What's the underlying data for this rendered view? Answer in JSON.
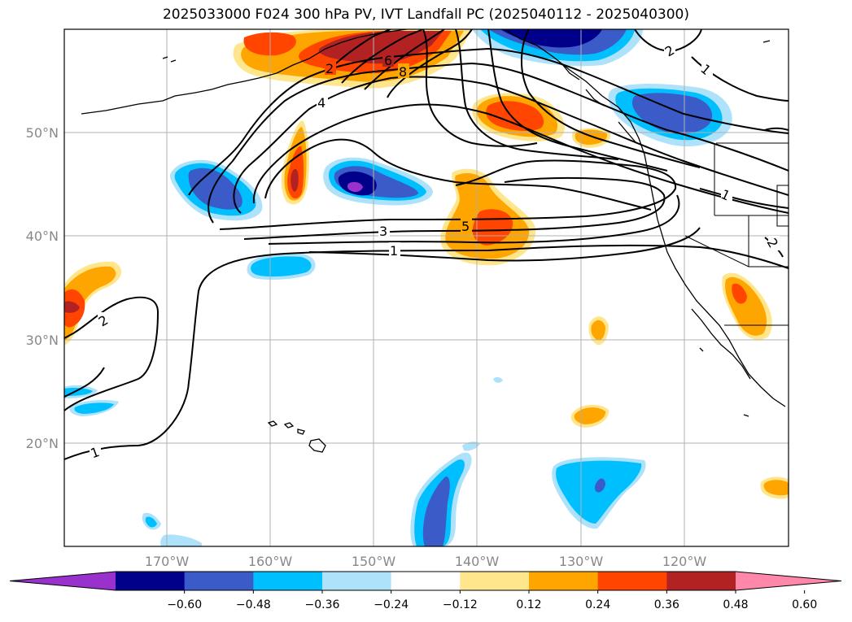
{
  "title": "2025033000 F024 300 hPa PV, IVT Landfall PC (2025040112 - 2025040300)",
  "lat_labels": [
    "50°N",
    "40°N",
    "30°N",
    "20°N"
  ],
  "lon_labels": [
    "170°W",
    "160°W",
    "150°W",
    "140°W",
    "130°W",
    "120°W"
  ],
  "colorbar": {
    "ticks": [
      "−0.60",
      "−0.48",
      "−0.36",
      "−0.24",
      "−0.12",
      "0.12",
      "0.24",
      "0.36",
      "0.48",
      "0.60"
    ],
    "colors": [
      "#9932CC",
      "#00008B",
      "#3A5BC8",
      "#00BFFF",
      "#ADE2FA",
      "#FFFFFF",
      "#FFE68C",
      "#FFA500",
      "#FF4500",
      "#B22222",
      "#FF88AA"
    ]
  },
  "contour_labels": [
    "2",
    "6",
    "8",
    "4",
    "3",
    "1",
    "5",
    "2",
    "1",
    "2",
    "1",
    "2",
    "1"
  ]
}
